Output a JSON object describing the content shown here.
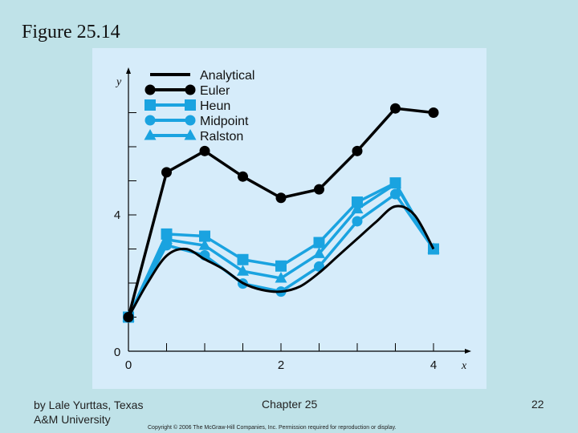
{
  "slide": {
    "figure_title": "Figure 25.14",
    "author_line1": "by Lale Yurttas, Texas",
    "author_line2": "A&M University",
    "chapter": "Chapter 25",
    "page_number": "22",
    "copyright": "Copyright © 2006 The McGraw-Hill Companies, Inc. Permission required for reproduction or display."
  },
  "chart_data": {
    "type": "line",
    "title": "",
    "xlabel": "x",
    "ylabel": "y",
    "xlim": [
      0,
      4.4
    ],
    "ylim": [
      0,
      8
    ],
    "x_tick_labels": [
      {
        "value": 0,
        "label": "0"
      },
      {
        "value": 2,
        "label": "2"
      },
      {
        "value": 4,
        "label": "4"
      }
    ],
    "y_tick_labels": [
      {
        "value": 0,
        "label": "0"
      },
      {
        "value": 4,
        "label": "4"
      }
    ],
    "x_minor_ticks": [
      0.5,
      1,
      1.5,
      2.5,
      3,
      3.5,
      4
    ],
    "y_minor_ticks": [
      1,
      2,
      3,
      5,
      6,
      7
    ],
    "legend_position": "top-left",
    "series": [
      {
        "name": "Analytical",
        "color": "#000000",
        "marker": "none",
        "x": [
          0,
          0.25,
          0.5,
          0.75,
          1,
          1.25,
          1.5,
          1.75,
          2,
          2.25,
          2.5,
          2.75,
          3,
          3.25,
          3.5,
          3.75,
          4
        ],
        "y": [
          1,
          2.0,
          2.8,
          3.0,
          2.7,
          2.4,
          2.0,
          1.8,
          1.75,
          1.9,
          2.3,
          2.8,
          3.3,
          3.8,
          4.25,
          4.0,
          3.0
        ]
      },
      {
        "name": "Euler",
        "color": "#000000",
        "marker": "circle",
        "x": [
          0,
          0.5,
          1,
          1.5,
          2,
          2.5,
          3,
          3.5,
          4
        ],
        "y": [
          1,
          5.25,
          5.875,
          5.125,
          4.5,
          4.75,
          5.875,
          7.125,
          7
        ]
      },
      {
        "name": "Heun",
        "color": "#1aa3e0",
        "marker": "square",
        "x": [
          0,
          0.5,
          1,
          1.5,
          2,
          2.5,
          3,
          3.5,
          4
        ],
        "y": [
          1,
          3.438,
          3.375,
          2.688,
          2.5,
          3.188,
          4.375,
          4.938,
          3
        ]
      },
      {
        "name": "Midpoint",
        "color": "#1aa3e0",
        "marker": "circle",
        "x": [
          0,
          0.5,
          1,
          1.5,
          2,
          2.5,
          3,
          3.5,
          4
        ],
        "y": [
          1,
          3.109,
          2.813,
          1.984,
          1.75,
          2.484,
          3.813,
          4.609,
          3
        ]
      },
      {
        "name": "Ralston",
        "color": "#1aa3e0",
        "marker": "triangle",
        "x": [
          0,
          0.5,
          1,
          1.5,
          2,
          2.5,
          3,
          3.5,
          4
        ],
        "y": [
          1,
          3.277,
          3.101,
          2.347,
          2.141,
          2.863,
          4.174,
          4.902,
          3
        ]
      }
    ]
  }
}
